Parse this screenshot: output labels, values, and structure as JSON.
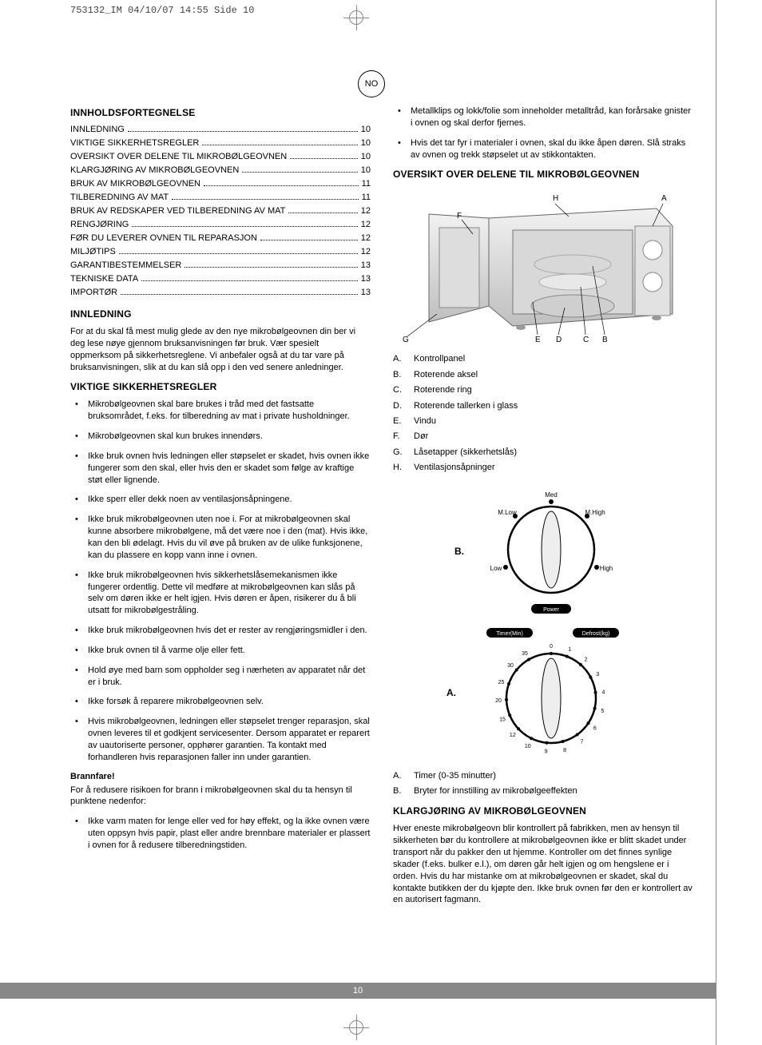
{
  "header_info": "753132_IM  04/10/07  14:55  Side 10",
  "lang_badge": "NO",
  "page_number": "10",
  "toc_heading": "INNHOLDSFORTEGNELSE",
  "toc": [
    {
      "t": "INNLEDNING",
      "p": "10"
    },
    {
      "t": "VIKTIGE SIKKERHETSREGLER",
      "p": "10"
    },
    {
      "t": "OVERSIKT OVER DELENE TIL MIKROBØLGEOVNEN",
      "p": "10"
    },
    {
      "t": "KLARGJØRING AV MIKROBØLGEOVNEN",
      "p": "10"
    },
    {
      "t": "BRUK AV MIKROBØLGEOVNEN",
      "p": "11"
    },
    {
      "t": "TILBEREDNING AV MAT",
      "p": "11"
    },
    {
      "t": "BRUK AV REDSKAPER VED TILBEREDNING AV MAT",
      "p": "12"
    },
    {
      "t": "RENGJØRING",
      "p": "12"
    },
    {
      "t": "FØR DU LEVERER OVNEN TIL REPARASJON",
      "p": "12"
    },
    {
      "t": "MILJØTIPS",
      "p": "12"
    },
    {
      "t": "GARANTIBESTEMMELSER",
      "p": "13"
    },
    {
      "t": "TEKNISKE DATA",
      "p": "13"
    },
    {
      "t": "IMPORTØR",
      "p": "13"
    }
  ],
  "intro_heading": "INNLEDNING",
  "intro_text": "For at du skal få mest mulig glede av den nye mikrobølgeovnen din ber vi deg lese nøye gjennom bruksanvisningen før bruk. Vær spesielt oppmerksom på sikkerhetsreglene. Vi anbefaler også at du tar vare på bruksanvisningen, slik at du kan slå opp i den ved senere anledninger.",
  "safety_heading": "VIKTIGE SIKKERHETSREGLER",
  "safety_items": [
    "Mikrobølgeovnen skal bare brukes i tråd med det fastsatte bruksområdet, f.eks. for tilberedning av mat i private husholdninger.",
    "Mikrobølgeovnen skal kun brukes innendørs.",
    "Ikke bruk ovnen hvis ledningen eller støpselet er skadet, hvis ovnen ikke fungerer som den skal, eller hvis den er skadet som følge av kraftige støt eller lignende.",
    "Ikke sperr eller dekk noen av ventilasjonsåpningene.",
    "Ikke bruk mikrobølgeovnen uten noe i. For at mikrobølgeovnen skal kunne absorbere mikrobølgene, må det være noe i den (mat). Hvis ikke, kan den bli ødelagt. Hvis du vil øve på bruken av de ulike funksjonene, kan du plassere en kopp vann inne i ovnen.",
    "Ikke bruk mikrobølgeovnen hvis sikkerhetslåsemekanismen ikke fungerer ordentlig. Dette vil medføre at mikrobølgeovnen kan slås på selv om døren ikke er helt igjen. Hvis døren er åpen, risikerer du å bli utsatt for mikrobølgestråling.",
    "Ikke bruk mikrobølgeovnen hvis det er rester av rengjøringsmidler i den.",
    "Ikke bruk ovnen til å varme olje eller fett.",
    "Hold øye med barn som oppholder seg i nærheten av apparatet når det er i bruk.",
    "Ikke forsøk å reparere mikrobølgeovnen selv.",
    "Hvis mikrobølgeovnen, ledningen eller støpselet trenger reparasjon, skal ovnen leveres til et godkjent servicesenter. Dersom apparatet er reparert av uautoriserte personer, opphører garantien. Ta kontakt med forhandleren hvis reparasjonen faller inn under garantien."
  ],
  "fire_heading": "Brannfare!",
  "fire_intro": "For å redusere risikoen for brann i mikrobølgeovnen skal du ta hensyn til punktene nedenfor:",
  "fire_items": [
    "Ikke varm maten for lenge eller ved for høy effekt, og la ikke ovnen være uten oppsyn hvis papir, plast eller andre brennbare materialer er plassert i ovnen for å redusere tilberedningstiden."
  ],
  "right_top_items": [
    "Metallklips og lokk/folie som inneholder metalltråd, kan forårsake gnister i ovnen og skal derfor fjernes.",
    "Hvis det tar fyr i materialer i ovnen, skal du ikke åpen døren. Slå straks av ovnen og trekk støpselet ut av stikkontakten."
  ],
  "overview_heading": "OVERSIKT OVER DELENE TIL MIKROBØLGEOVNEN",
  "diagram_labels": {
    "A": "A",
    "B": "B",
    "C": "C",
    "D": "D",
    "E": "E",
    "F": "F",
    "G": "G",
    "H": "H"
  },
  "parts": [
    {
      "l": "A.",
      "t": "Kontrollpanel"
    },
    {
      "l": "B.",
      "t": "Roterende aksel"
    },
    {
      "l": "C.",
      "t": "Roterende ring"
    },
    {
      "l": "D.",
      "t": "Roterende tallerken i glass"
    },
    {
      "l": "E.",
      "t": "Vindu"
    },
    {
      "l": "F.",
      "t": "Dør"
    },
    {
      "l": "G.",
      "t": "Låsetapper (sikkerhetslås)"
    },
    {
      "l": "H.",
      "t": "Ventilasjonsåpninger"
    }
  ],
  "dial_b_label": "B.",
  "dial_a_label": "A.",
  "dial_labels": {
    "med": "Med",
    "mlow": "M.Low",
    "mhigh": "M.High",
    "low": "Low",
    "high": "High",
    "power": "Power",
    "timer": "Timer(Min)",
    "defrost": "Defrost(kg)"
  },
  "timer_ticks": [
    "0",
    "1",
    "2",
    "3",
    "4",
    "5",
    "6",
    "7",
    "8",
    "9",
    "10",
    "12",
    "15",
    "20",
    "25",
    "30",
    "35"
  ],
  "controls": [
    {
      "l": "A.",
      "t": "Timer (0-35 minutter)"
    },
    {
      "l": "B.",
      "t": "Bryter for innstilling av mikrobølgeeffekten"
    }
  ],
  "prep_heading": "KLARGJØRING AV MIKROBØLGEOVNEN",
  "prep_text": "Hver eneste mikrobølgeovn blir kontrollert på fabrikken, men av hensyn til sikkerheten bør du kontrollere at mikrobølgeovnen ikke er blitt skadet under transport når du pakker den ut hjemme. Kontroller om det finnes synlige skader (f.eks. bulker e.l.), om døren går helt igjen og om hengslene er i orden. Hvis du har mistanke om at mikrobølgeovnen er skadet, skal du kontakte butikken der du kjøpte den. Ikke bruk ovnen før den er kontrollert av en autorisert fagmann."
}
